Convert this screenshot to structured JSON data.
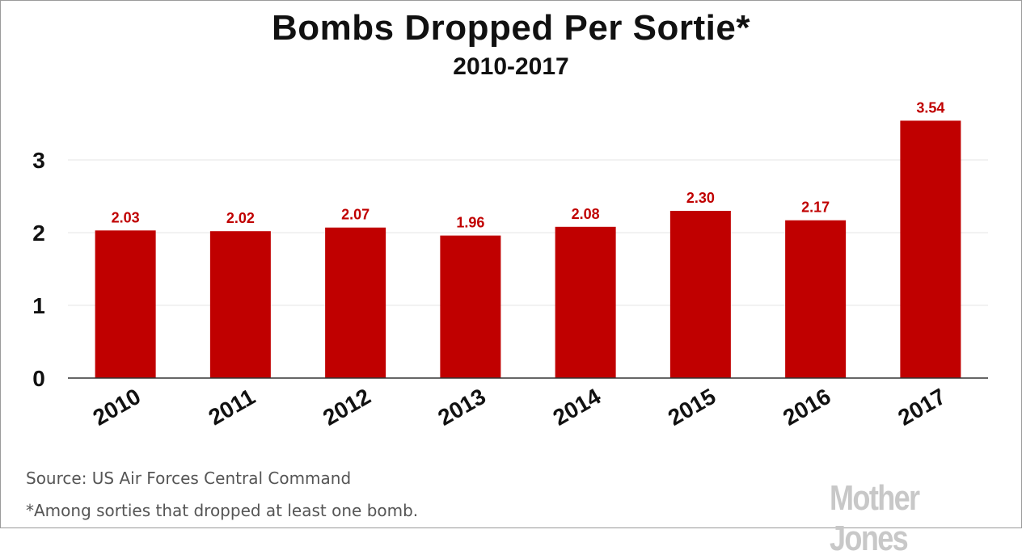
{
  "chart_data": {
    "type": "bar",
    "title": "Bombs Dropped Per Sortie*",
    "subtitle": "2010-2017",
    "categories": [
      "2010",
      "2011",
      "2012",
      "2013",
      "2014",
      "2015",
      "2016",
      "2017"
    ],
    "values": [
      2.03,
      2.02,
      2.07,
      1.96,
      2.08,
      2.3,
      2.17,
      3.54
    ],
    "value_labels": [
      "2.03",
      "2.02",
      "2.07",
      "1.96",
      "2.08",
      "2.30",
      "2.17",
      "3.54"
    ],
    "yticks": [
      "0",
      "1",
      "2",
      "3"
    ],
    "ylim": [
      0,
      3.9
    ],
    "xlabel": "",
    "ylabel": "",
    "grid": true,
    "bar_color": "#c00000",
    "label_color": "#c00000"
  },
  "footer": {
    "source": "Source: US Air Forces Central Command",
    "footnote": "*Among sorties that dropped at least one bomb.",
    "logo": "Mother Jones"
  }
}
